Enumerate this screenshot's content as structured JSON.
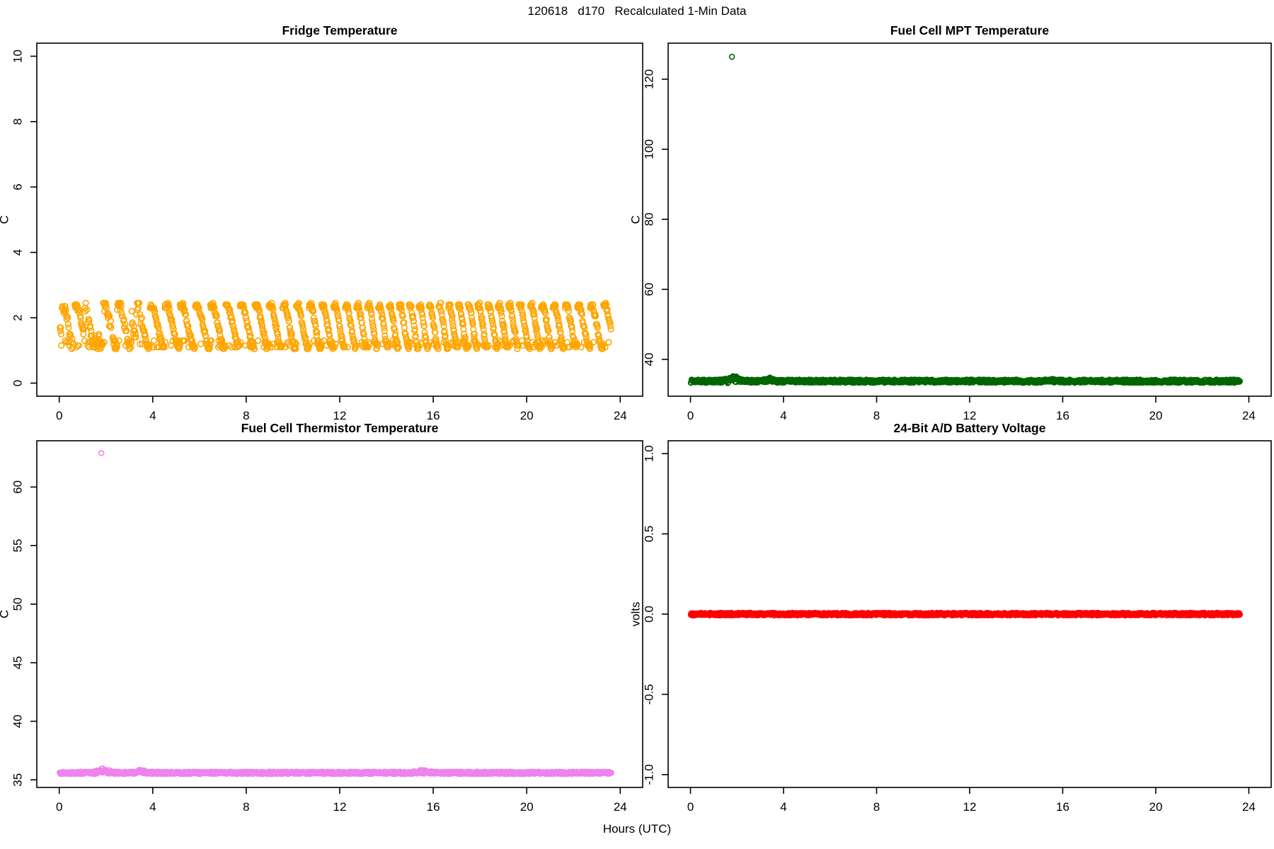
{
  "figure": {
    "title": "120618   d170   Recalculated 1-Min Data",
    "xlabel": "Hours (UTC)",
    "background": "#ffffff"
  },
  "chart_data": [
    {
      "id": "fridge-temperature",
      "panel": "top-left",
      "type": "scatter",
      "title": "Fridge Temperature",
      "ylabel": "C",
      "marker_color": "#FFA500",
      "marker_radius": 3.8,
      "seed": 42,
      "xlim": [
        -0.96,
        24.96
      ],
      "ylim": [
        -0.4,
        10.4
      ],
      "xticks": [
        0,
        4,
        8,
        12,
        16,
        20,
        24
      ],
      "yticks": [
        {
          "v": 0,
          "label": "0"
        },
        {
          "v": 2,
          "label": "2"
        },
        {
          "v": 4,
          "label": "4"
        },
        {
          "v": 6,
          "label": "6"
        },
        {
          "v": 8,
          "label": "8"
        },
        {
          "v": 10,
          "label": "10"
        }
      ],
      "series": {
        "kind": "sawtooth_band",
        "description": "1-min fridge temperature cycling between ~1.05 and ~2.45 C for 24 h; regular defrost-cycle sawtooth stripes, irregular/sparser before hour 3.6",
        "t_start": 0.03,
        "t_end": 23.6,
        "min": 1.05,
        "max": 2.45,
        "period_base": 32,
        "period_wobble": 7,
        "quant": 0.05,
        "irregular_until": 3.6,
        "extra_bottom_prob": 0.15
      }
    },
    {
      "id": "fuel-cell-mpt-temperature",
      "panel": "top-right",
      "type": "scatter",
      "title": "Fuel Cell MPT Temperature",
      "ylabel": "C",
      "marker_color": "#006400",
      "marker_radius": 3.5,
      "seed": 7,
      "xlim": [
        -0.96,
        24.96
      ],
      "ylim": [
        29.5,
        130.3
      ],
      "xticks": [
        0,
        4,
        8,
        12,
        16,
        20,
        24
      ],
      "yticks": [
        {
          "v": 40,
          "label": "40"
        },
        {
          "v": 60,
          "label": "60"
        },
        {
          "v": 80,
          "label": "80"
        },
        {
          "v": 100,
          "label": "100"
        },
        {
          "v": 120,
          "label": "120"
        }
      ],
      "series": {
        "kind": "flat_band",
        "description": "Steady ~33.8 C band for 24 h with tiny rises near hours 1.85, 3.45 and 15.6; single outlier at 126.4 C",
        "t_start": 0.02,
        "t_end": 23.62,
        "baseline": 33.8,
        "jitter": 0.45,
        "bumps": [
          {
            "t": 1.85,
            "width": 0.22,
            "rise": 1.1,
            "spread": 0.9
          },
          {
            "t": 3.45,
            "width": 0.18,
            "rise": 0.7,
            "spread": 0.5
          },
          {
            "t": 15.6,
            "width": 0.25,
            "rise": 0.35,
            "spread": 0.3
          }
        ],
        "outlier": {
          "x": 1.78,
          "y": 126.4
        }
      }
    },
    {
      "id": "fuel-cell-thermistor-temperature",
      "panel": "bottom-left",
      "type": "scatter",
      "title": "Fuel Cell Thermistor Temperature",
      "ylabel": "C",
      "marker_color": "#EE82EE",
      "marker_radius": 3.5,
      "seed": 13,
      "xlim": [
        -0.96,
        24.96
      ],
      "ylim": [
        34.35,
        63.95
      ],
      "xticks": [
        0,
        4,
        8,
        12,
        16,
        20,
        24
      ],
      "yticks": [
        {
          "v": 35,
          "label": "35"
        },
        {
          "v": 40,
          "label": "40"
        },
        {
          "v": 45,
          "label": "45"
        },
        {
          "v": 50,
          "label": "50"
        },
        {
          "v": 55,
          "label": "55"
        },
        {
          "v": 60,
          "label": "60"
        }
      ],
      "series": {
        "kind": "flat_band",
        "description": "Steady ~35.6 C band for 24 h with tiny bumps near hours 1.85, 3.5 and 15.55; single outlier at 62.9 C",
        "t_start": 0.02,
        "t_end": 23.62,
        "baseline": 35.6,
        "jitter": 0.1,
        "bumps": [
          {
            "t": 1.85,
            "width": 0.2,
            "rise": 0.3,
            "spread": 0.2
          },
          {
            "t": 3.5,
            "width": 0.18,
            "rise": 0.22,
            "spread": 0.15
          },
          {
            "t": 15.55,
            "width": 0.25,
            "rise": 0.15,
            "spread": 0.1
          }
        ],
        "outlier": {
          "x": 1.8,
          "y": 62.9
        }
      }
    },
    {
      "id": "battery-voltage",
      "panel": "bottom-right",
      "type": "scatter",
      "title": "24-Bit A/D Battery Voltage",
      "ylabel": "volts",
      "marker_color": "#FF0000",
      "marker_radius": 3.5,
      "seed": 99,
      "xlim": [
        -0.96,
        24.96
      ],
      "ylim": [
        -1.08,
        1.08
      ],
      "xticks": [
        0,
        4,
        8,
        12,
        16,
        20,
        24
      ],
      "yticks": [
        {
          "v": -1,
          "label": "-1.0"
        },
        {
          "v": -0.5,
          "label": "-0.5"
        },
        {
          "v": 0,
          "label": "0.0"
        },
        {
          "v": 0.5,
          "label": "0.5"
        },
        {
          "v": 1,
          "label": "1.0"
        }
      ],
      "series": {
        "kind": "flat_band",
        "description": "Constant 0.0 V for 24 h",
        "t_start": 0.02,
        "t_end": 23.62,
        "baseline": 0.0,
        "jitter": 0.008,
        "bumps": []
      }
    }
  ]
}
